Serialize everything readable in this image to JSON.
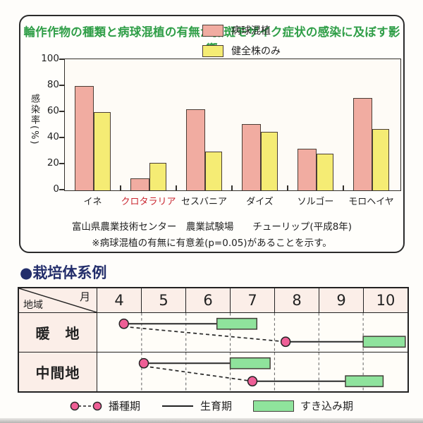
{
  "page": {
    "background": "#fefdfa"
  },
  "chart_data": [
    {
      "type": "bar",
      "title": "輪作作物の種類と病球混植の有無が微斑モザイク症状の感染に及ぼす影響",
      "title_color": "#2f9e47",
      "ylabel": "感染率(%)",
      "ylim": [
        0,
        100
      ],
      "yticks": [
        0,
        20,
        40,
        60,
        80,
        100
      ],
      "grid": false,
      "legend_position": "upper-center-right",
      "categories": [
        "イネ",
        "クロタラリア",
        "セスバニア",
        "ダイズ",
        "ソルゴー",
        "モロヘイヤ"
      ],
      "highlight_category": "クロタラリア",
      "highlight_color": "#c9252f",
      "series": [
        {
          "name": "病球混植",
          "color": "#f1aca1",
          "values": [
            80,
            9,
            62,
            51,
            32,
            71
          ]
        },
        {
          "name": "健全株のみ",
          "color": "#f5ec74",
          "values": [
            60,
            21,
            30,
            45,
            28,
            47
          ]
        }
      ],
      "source": "富山県農業技術センター　農業試験場　　チューリップ(平成8年)",
      "note": "※病球混植の有無に有意差(p=0.05)があることを示す。"
    },
    {
      "type": "gantt",
      "title": "●栽培体系例",
      "title_color": "#232e6b",
      "corner_labels": {
        "top_right": "月",
        "bottom_left": "地域"
      },
      "months": [
        "4",
        "5",
        "6",
        "7",
        "8",
        "9",
        "10"
      ],
      "month_range": [
        4,
        11
      ],
      "rows": [
        {
          "label": "暖　地",
          "plantings": [
            {
              "sow_month": 4.6,
              "growth_end_month": 6.7,
              "plow_end_month": 7.6
            },
            {
              "sow_month": 8.25,
              "growth_end_month": 10.0,
              "plow_end_month": 10.95
            }
          ]
        },
        {
          "label": "中間地",
          "plantings": [
            {
              "sow_month": 5.05,
              "growth_end_month": 7.0,
              "plow_end_month": 7.9
            },
            {
              "sow_month": 7.5,
              "growth_end_month": 9.6,
              "plow_end_month": 10.45
            }
          ]
        }
      ],
      "legend": [
        {
          "symbol": "sow-circles-dashed",
          "label": "播種期"
        },
        {
          "symbol": "solid-line",
          "label": "生育期"
        },
        {
          "symbol": "green-bar",
          "label": "すき込み期"
        }
      ],
      "colors": {
        "sow_circle": "#ee5f96",
        "growth_line": "#2a2a2a",
        "plow_bar": "#8fe39c",
        "table_label_bg": "#fbeee8"
      }
    }
  ]
}
